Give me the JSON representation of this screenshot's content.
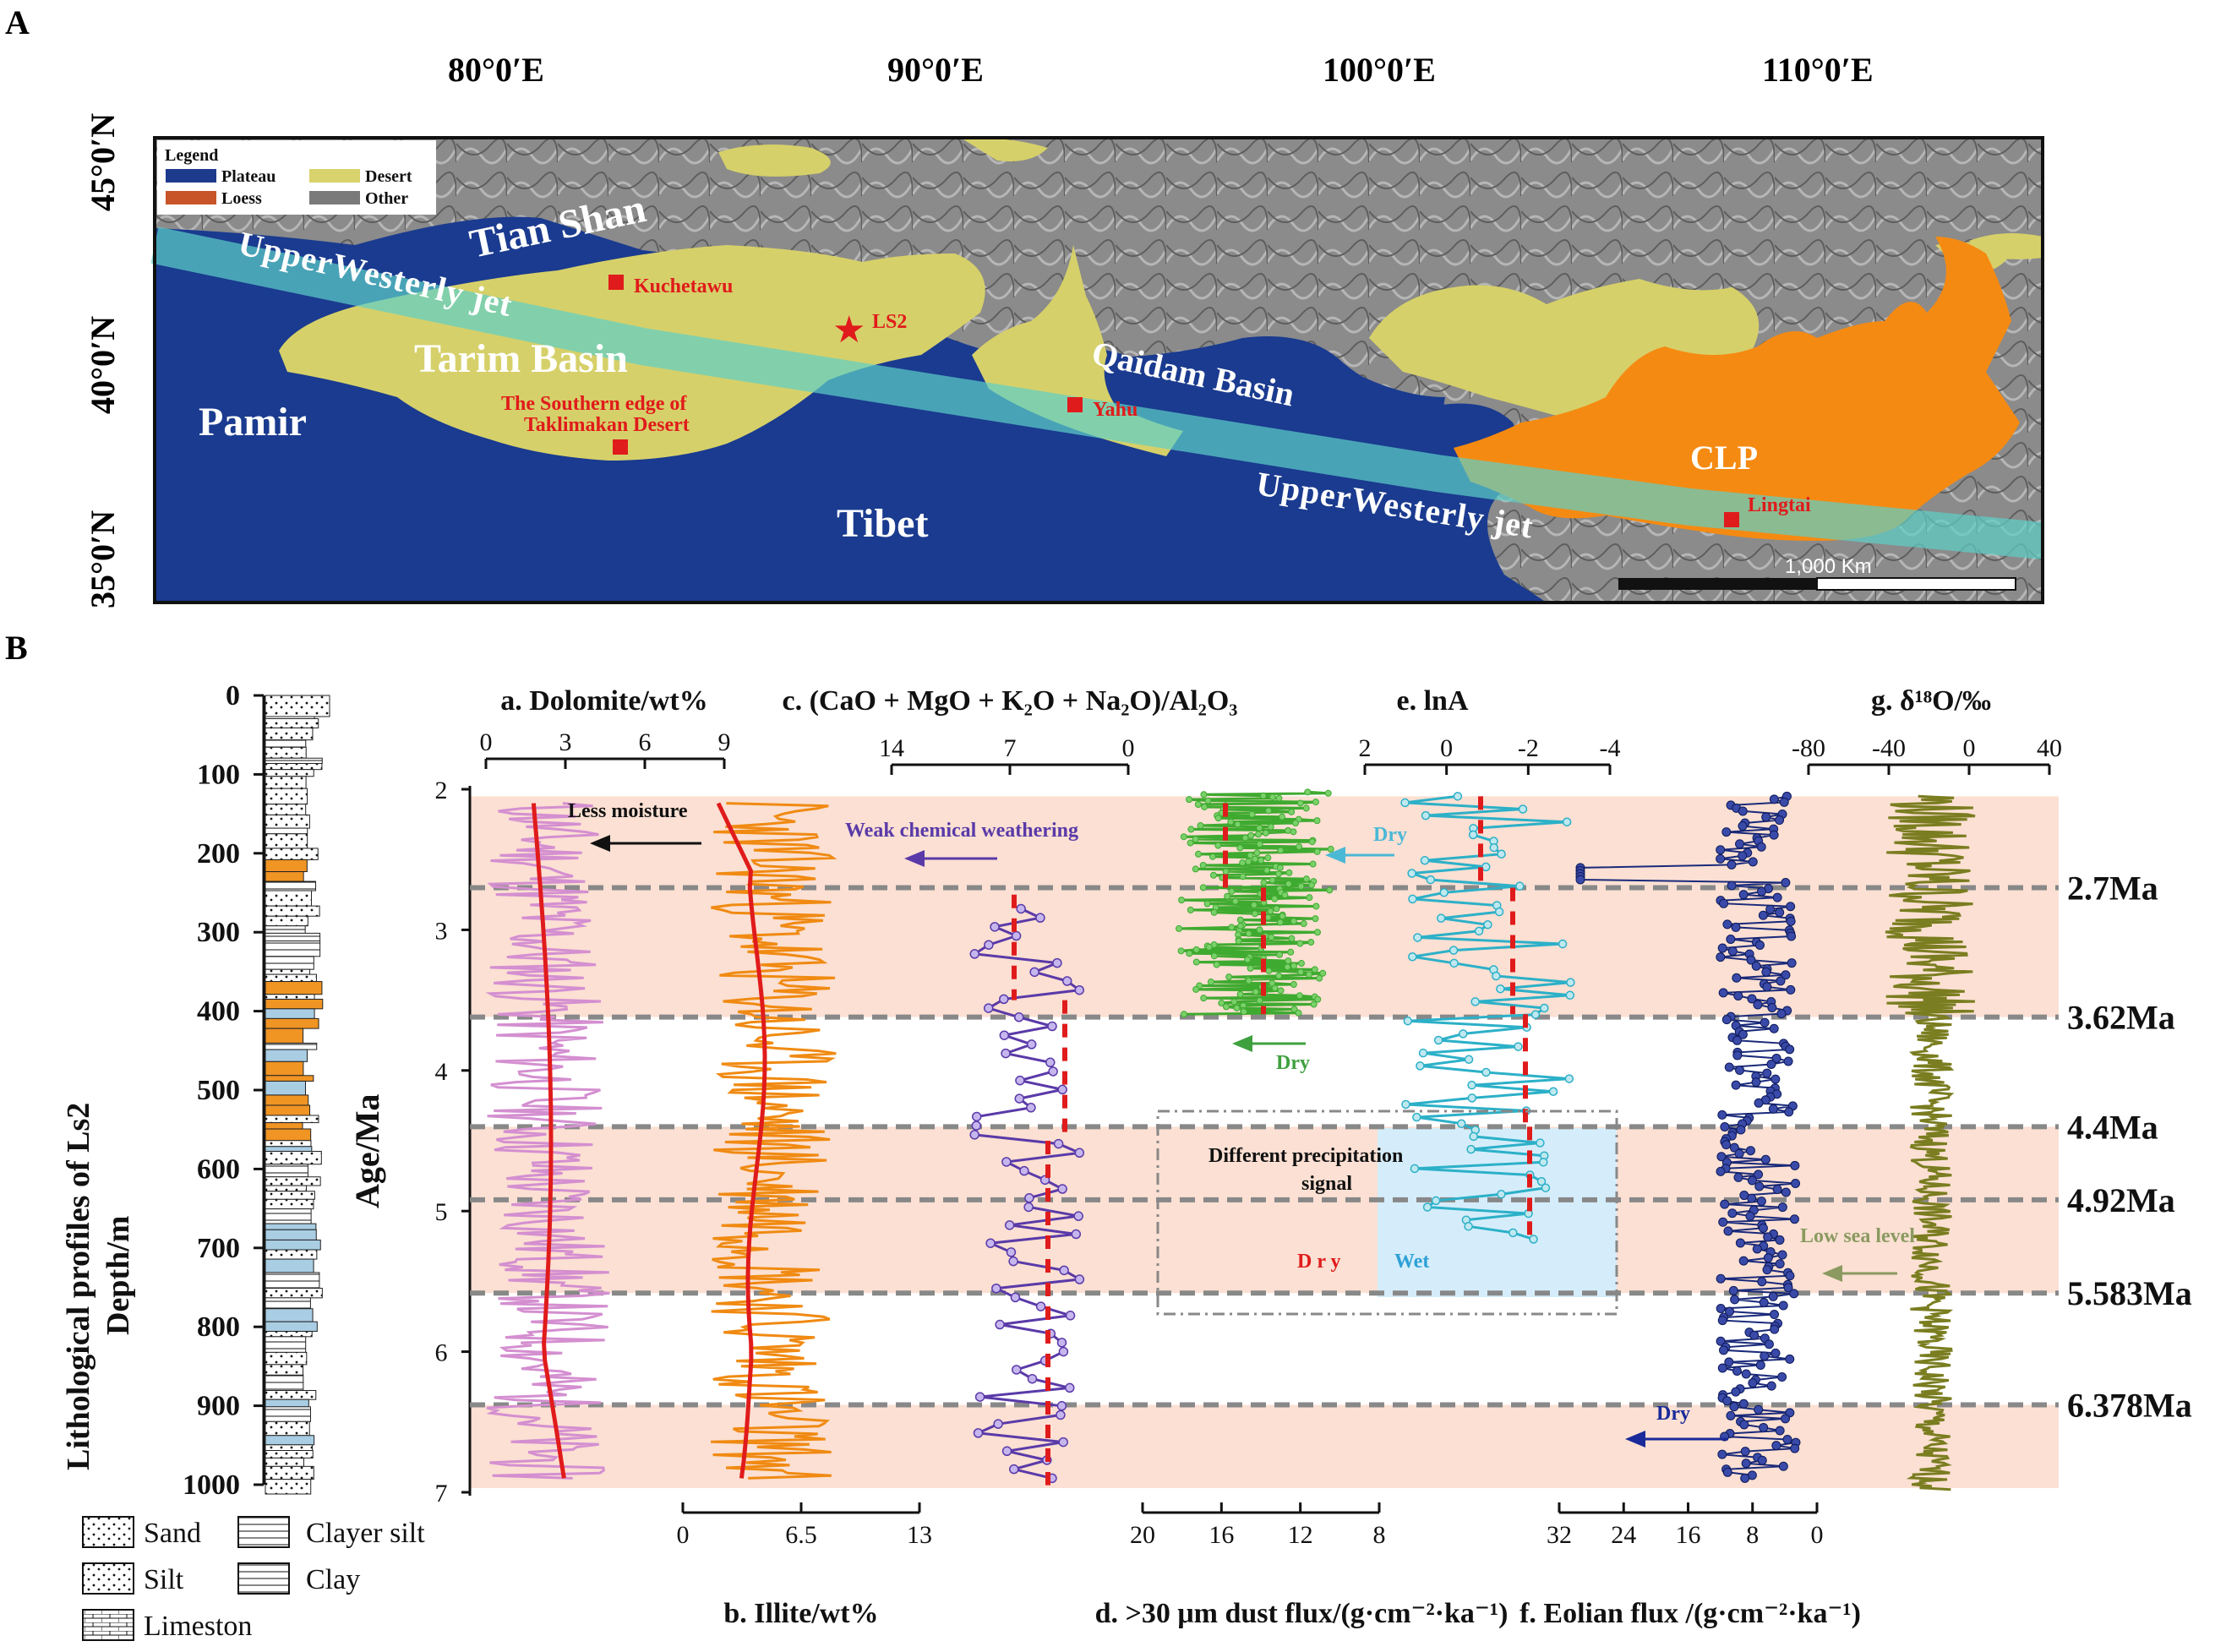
{
  "panel_labels": {
    "a": "A",
    "b": "B"
  },
  "map": {
    "longitude_labels": [
      "80°0′E",
      "90°0′E",
      "100°0′E",
      "110°0′E"
    ],
    "latitude_labels": [
      "45°0′N",
      "40°0′N",
      "35°0′N"
    ],
    "legend": {
      "title": "Legend",
      "items": [
        {
          "label": "Plateau",
          "color": "#1e3a8c"
        },
        {
          "label": "Loess",
          "color": "#c8552a"
        },
        {
          "label": "Desert",
          "color": "#d8d36c"
        },
        {
          "label": "Other",
          "color": "#7a7a7a"
        }
      ]
    },
    "regions": {
      "tian_shan": "Tian Shan",
      "tarim": "Tarim Basin",
      "pamir": "Pamir",
      "tibet": "Tibet",
      "qaidam": "Qaidam Basin",
      "clp": "CLP"
    },
    "jet": {
      "label_1": "UpperWesterly jet",
      "label_2": "UpperWesterly jet"
    },
    "sites": {
      "kuchetawu": "Kuchetawu",
      "ls2": "LS2",
      "taklimakan_1": "The Southern edge of",
      "taklimakan_2": "Taklimakan Desert",
      "yahu": "Yahu",
      "lingtai": "Lingtai"
    },
    "scale": "1,000 Km"
  },
  "litho": {
    "title_1": "Lithological profiles of Ls2",
    "title_2": "Depth/m",
    "depth_ticks": [
      "0",
      "100",
      "200",
      "300",
      "400",
      "500",
      "600",
      "700",
      "800",
      "900",
      "1000"
    ],
    "legend": [
      "Sand",
      "Clayer silt",
      "Silt",
      "Clay",
      "Limeston"
    ]
  },
  "chart_data": {
    "type": "line",
    "y_axis": {
      "label": "Age/Ma",
      "range": [
        2,
        7
      ],
      "ticks": [
        "2",
        "3",
        "4",
        "5",
        "6",
        "7"
      ]
    },
    "axes": {
      "a": {
        "title": "a. Dolomite/wt%",
        "ticks": [
          "0",
          "3",
          "6",
          "9"
        ]
      },
      "b": {
        "title": "b. Illite/wt%",
        "ticks": [
          "0",
          "6.5",
          "13"
        ]
      },
      "c": {
        "title": "c. (CaO + MgO + K₂O + Na₂O)/Al₂O₃",
        "ticks": [
          "14",
          "7",
          "0"
        ]
      },
      "d": {
        "title": "d. >30 μm dust flux/(g·cm⁻²·ka⁻¹)",
        "ticks": [
          "20",
          "16",
          "12",
          "8"
        ]
      },
      "e": {
        "title": "e. lnA",
        "ticks": [
          "2",
          "0",
          "-2",
          "-4"
        ]
      },
      "f": {
        "title": "f. Eolian flux /(g·cm⁻²·ka⁻¹)",
        "ticks": [
          "32",
          "24",
          "16",
          "8",
          "0"
        ]
      },
      "g": {
        "title": "g. δ¹⁸O/‰",
        "ticks": [
          "-80",
          "-40",
          "0",
          "40"
        ]
      }
    },
    "boundaries": [
      "2.7Ma",
      "3.62Ma",
      "4.4Ma",
      "4.92Ma",
      "5.583Ma",
      "6.378Ma"
    ],
    "annotations": {
      "less_moisture": "Less moisture",
      "weak_weathering": "Weak chemical weathering",
      "dry_e": "Dry",
      "dry_d": "Dry",
      "dry_f": "Dry",
      "low_sea": "Low sea level",
      "diff_1": "Different precipitation",
      "diff_2": "signal",
      "dry_box": "D r y",
      "wet_box": "Wet"
    }
  }
}
